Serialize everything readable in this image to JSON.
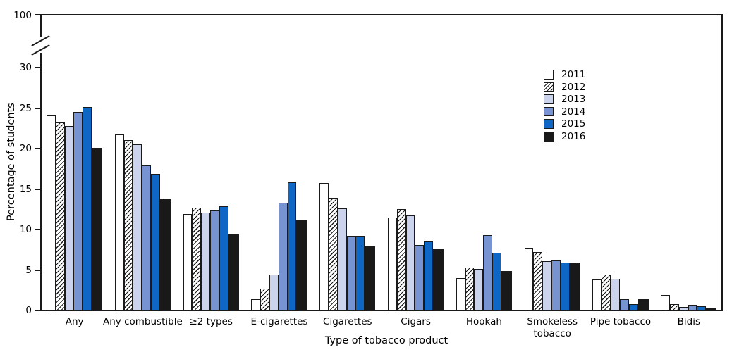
{
  "chart_data": {
    "type": "bar",
    "title": "",
    "xlabel": "Type of tobacco product",
    "ylabel": "Percentage of students",
    "ylim": [
      0,
      100
    ],
    "axis_break": {
      "between": [
        30,
        100
      ]
    },
    "yticks": [
      0,
      5,
      10,
      15,
      20,
      25,
      30
    ],
    "ytick_top": 100,
    "grid": false,
    "legend_position": "upper right",
    "categories": [
      "Any",
      "Any combustible",
      "≥2 types",
      "E-cigarettes",
      "Cigarettes",
      "Cigars",
      "Hookah",
      "Smokeless\ntobacco",
      "Pipe tobacco",
      "Bidis"
    ],
    "series": [
      {
        "name": "2011",
        "fill": "#ffffff",
        "pattern": "solid",
        "values": [
          24.2,
          21.8,
          12.0,
          1.5,
          15.8,
          11.6,
          4.1,
          7.8,
          3.9,
          2.0
        ]
      },
      {
        "name": "2012",
        "fill": "#ffffff",
        "pattern": "diagonal-hatch",
        "values": [
          23.3,
          21.1,
          12.8,
          2.8,
          14.0,
          12.6,
          5.4,
          7.3,
          4.5,
          0.9
        ]
      },
      {
        "name": "2013",
        "fill": "#ccd3ed",
        "pattern": "solid",
        "values": [
          22.9,
          20.6,
          12.2,
          4.5,
          12.7,
          11.8,
          5.2,
          6.2,
          4.0,
          0.5
        ]
      },
      {
        "name": "2014",
        "fill": "#7793d1",
        "pattern": "solid",
        "values": [
          24.6,
          18.0,
          12.4,
          13.4,
          9.3,
          8.2,
          9.4,
          6.3,
          1.5,
          0.8
        ]
      },
      {
        "name": "2015",
        "fill": "#0f67c5",
        "pattern": "solid",
        "values": [
          25.2,
          17.0,
          13.0,
          15.9,
          9.3,
          8.6,
          7.2,
          6.0,
          0.9,
          0.6
        ]
      },
      {
        "name": "2016",
        "fill": "#191919",
        "pattern": "solid",
        "values": [
          20.2,
          13.8,
          9.6,
          11.3,
          8.1,
          7.7,
          5.0,
          5.9,
          1.5,
          0.4
        ]
      }
    ]
  }
}
